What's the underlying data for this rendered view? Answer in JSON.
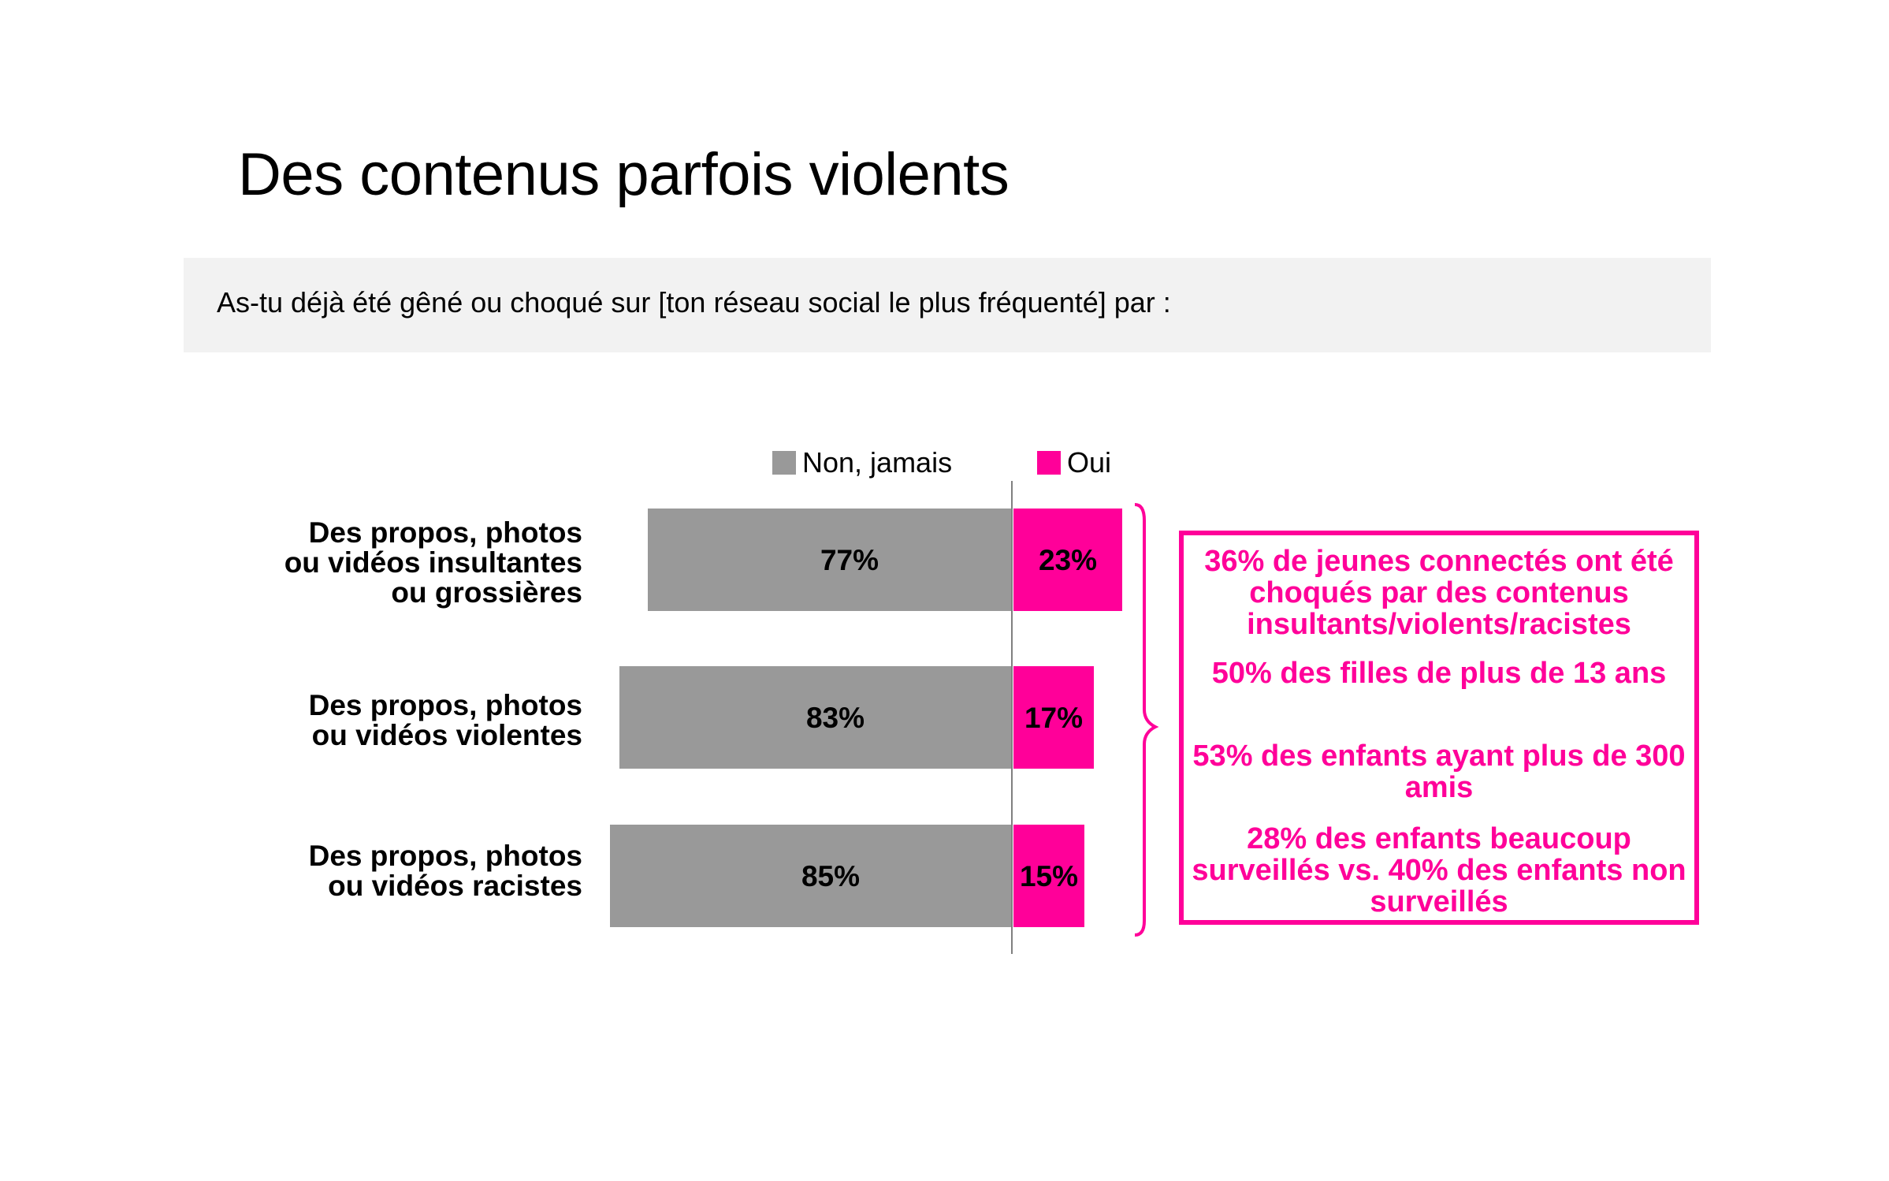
{
  "title": "Des contenus parfois violents",
  "question": "As-tu déjà été gêné ou choqué sur  [ton réseau social le plus fréquenté] par :",
  "colors": {
    "non": "#999999",
    "oui": "#ff0099",
    "band": "#f2f2f2"
  },
  "chart_data": {
    "type": "bar",
    "orientation": "horizontal-diverging",
    "legend_position": "top",
    "categories": [
      "Des propos, photos ou vidéos insultantes ou grossières",
      "Des propos, photos ou vidéos violentes",
      "Des propos, photos ou vidéos racistes"
    ],
    "category_lines": [
      [
        "Des propos, photos",
        "ou vidéos insultantes",
        "ou grossières"
      ],
      [
        "Des propos, photos",
        "ou vidéos violentes"
      ],
      [
        "Des propos, photos",
        "ou vidéos racistes"
      ]
    ],
    "series": [
      {
        "name": "Non, jamais",
        "values": [
          77,
          83,
          85
        ],
        "labels": [
          "77%",
          "83%",
          "85%"
        ]
      },
      {
        "name": "Oui",
        "values": [
          23,
          17,
          15
        ],
        "labels": [
          "23%",
          "17%",
          "15%"
        ]
      }
    ],
    "unit": "%"
  },
  "callout": {
    "items": [
      "36% de jeunes connectés ont été choqués par des contenus insultants/violents/racistes",
      "50% des filles de plus de 13 ans",
      "53% des enfants ayant plus de 300 amis",
      "28% des enfants beaucoup surveillés vs. 40% des enfants non surveillés"
    ]
  }
}
